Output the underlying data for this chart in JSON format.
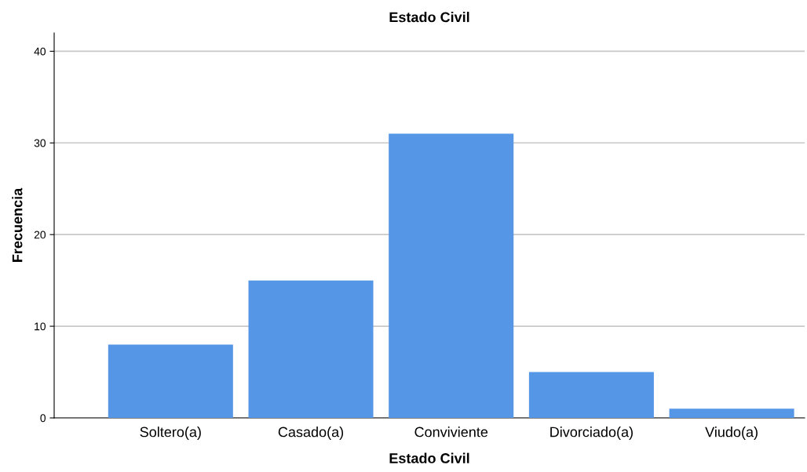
{
  "chart_data": {
    "type": "bar",
    "title": "Estado Civil",
    "xlabel": "Estado Civil",
    "ylabel": "Frecuencia",
    "categories": [
      "Soltero(a)",
      "Casado(a)",
      "Conviviente",
      "Divorciado(a)",
      "Viudo(a)"
    ],
    "values": [
      8,
      15,
      31,
      5,
      1
    ],
    "color": "#5596e6",
    "ylim": [
      0,
      42
    ],
    "yticks": [
      0,
      10,
      20,
      30,
      40
    ],
    "grid": "y"
  }
}
